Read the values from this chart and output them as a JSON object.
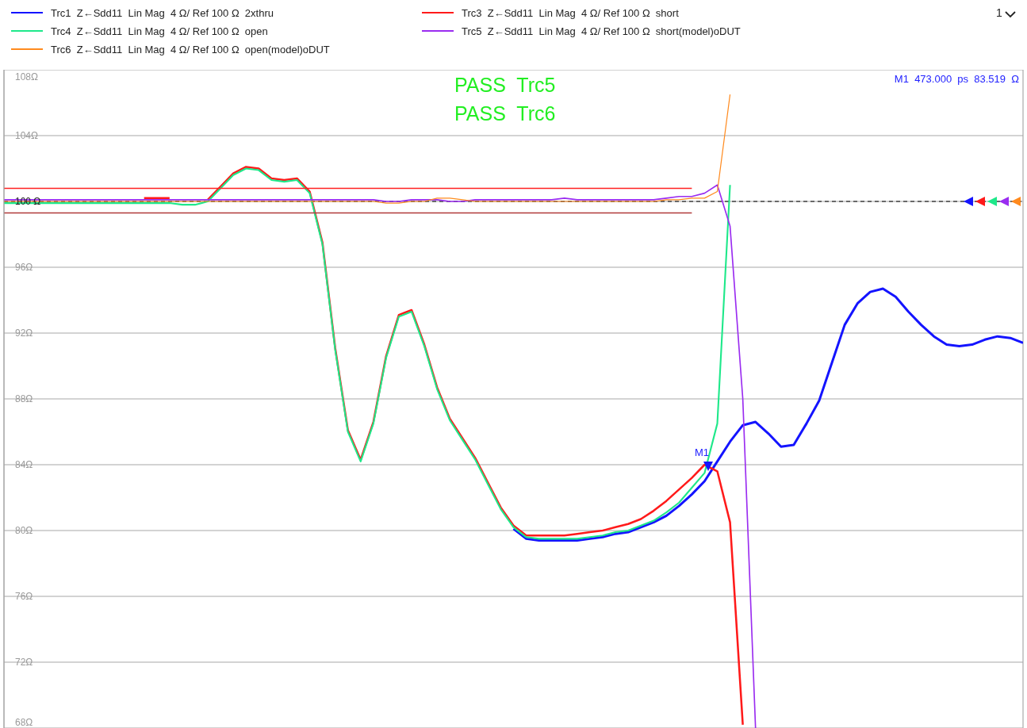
{
  "chart_data": {
    "type": "line",
    "categories": [
      null,
      null,
      null,
      null,
      null,
      null,
      null,
      null,
      null,
      null,
      null,
      null,
      null,
      null,
      null,
      null,
      null,
      null,
      null,
      null,
      null,
      null,
      null,
      null,
      null,
      null,
      null,
      null,
      null,
      null,
      null,
      null,
      null,
      null,
      null,
      null,
      null,
      null,
      null,
      null,
      null,
      null,
      null,
      null,
      null,
      null,
      null,
      null,
      null,
      null,
      null,
      null,
      null,
      null,
      null,
      null,
      null,
      null,
      null,
      null,
      null,
      null,
      null,
      null,
      null,
      null,
      null,
      null,
      null,
      null,
      null,
      null,
      null,
      null,
      null,
      null,
      null,
      null,
      null,
      null,
      null
    ],
    "series": [
      {
        "name": "Trc1  Z←Sdd11  Lin Mag  4 Ω/ Ref 100 Ω  2xthru",
        "color": "#1414ff",
        "values": [
          null,
          null,
          null,
          null,
          null,
          null,
          null,
          null,
          null,
          null,
          null,
          null,
          null,
          null,
          null,
          null,
          null,
          null,
          null,
          null,
          null,
          null,
          null,
          null,
          null,
          null,
          null,
          null,
          null,
          null,
          null,
          null,
          null,
          null,
          null,
          null,
          null,
          null,
          null,
          null,
          80.1,
          79.5,
          79.4,
          79.4,
          79.4,
          79.4,
          79.5,
          79.6,
          79.8,
          79.9,
          80.2,
          80.5,
          80.9,
          81.5,
          82.2,
          83.0,
          84.2,
          85.4,
          86.4,
          86.6,
          85.9,
          85.1,
          85.2,
          86.5,
          87.9,
          90.2,
          92.5,
          93.8,
          94.5,
          94.7,
          94.2,
          93.3,
          92.5,
          91.8,
          91.3,
          91.2,
          91.3,
          91.6,
          91.8,
          91.7,
          91.4
        ]
      },
      {
        "name": "Trc3  Z←Sdd11  Lin Mag  4 Ω/ Ref 100 Ω  short",
        "color": "#ff1a1a",
        "values": [
          null,
          null,
          null,
          null,
          null,
          null,
          null,
          null,
          null,
          null,
          null,
          100.2,
          100.2,
          100.2,
          null,
          null,
          100.1,
          100.9,
          101.7,
          102.1,
          102.0,
          101.4,
          101.3,
          101.4,
          100.6,
          97.5,
          91.1,
          86.1,
          84.3,
          86.6,
          90.6,
          93.1,
          93.4,
          91.3,
          88.7,
          86.8,
          85.6,
          84.4,
          82.9,
          81.4,
          80.3,
          79.7,
          79.7,
          79.7,
          79.7,
          79.8,
          79.9,
          80.0,
          80.2,
          80.4,
          80.7,
          81.2,
          81.8,
          82.5,
          83.2,
          84.0,
          83.6,
          80.5,
          68.2,
          null,
          null,
          null,
          null,
          null,
          null,
          null,
          null,
          null,
          null,
          null,
          null,
          null,
          null,
          null,
          null,
          null,
          null,
          null,
          null,
          null,
          null
        ]
      },
      {
        "name": "Trc4  Z←Sdd11  Lin Mag  4 Ω/ Ref 100 Ω  open",
        "color": "#1ee88a",
        "values": [
          99.9,
          99.9,
          99.9,
          99.9,
          99.9,
          99.9,
          99.9,
          99.9,
          99.9,
          99.9,
          99.9,
          99.9,
          99.9,
          99.9,
          99.8,
          99.8,
          100,
          100.8,
          101.6,
          102.0,
          101.9,
          101.3,
          101.2,
          101.3,
          100.5,
          97.4,
          91.0,
          86.0,
          84.2,
          86.5,
          90.5,
          93.0,
          93.3,
          91.2,
          88.6,
          86.7,
          85.5,
          84.3,
          82.8,
          81.3,
          80.2,
          79.6,
          79.5,
          79.5,
          79.5,
          79.5,
          79.6,
          79.7,
          79.9,
          80.0,
          80.3,
          80.6,
          81.1,
          81.7,
          82.6,
          83.5,
          86.5,
          101.0,
          null,
          null,
          null,
          null,
          null,
          null,
          null,
          null,
          null,
          null,
          null,
          null,
          null,
          null,
          null,
          null,
          null,
          null,
          null,
          null,
          null,
          null,
          null
        ]
      },
      {
        "name": "Trc5  Z←Sdd11  Lin Mag  4 Ω/ Ref 100 Ω  short(model)oDUT",
        "color": "#9a2cf0",
        "values": [
          100.1,
          100.1,
          100.1,
          100.1,
          100.1,
          100.1,
          100.1,
          100.1,
          100.1,
          100.1,
          100.1,
          100.1,
          100.1,
          100.1,
          100.1,
          100.1,
          100.1,
          100.1,
          100.1,
          100.1,
          100.1,
          100.1,
          100.1,
          100.1,
          100.1,
          100.1,
          100.1,
          100.1,
          100.1,
          100.1,
          100.0,
          100.0,
          100.1,
          100.1,
          100.1,
          100.0,
          100.0,
          100.1,
          100.1,
          100.1,
          100.1,
          100.1,
          100.1,
          100.1,
          100.2,
          100.1,
          100.1,
          100.1,
          100.1,
          100.1,
          100.1,
          100.1,
          100.2,
          100.3,
          100.3,
          100.5,
          101.0,
          98.5,
          88.0,
          68.0,
          null,
          null,
          null,
          null,
          null,
          null,
          null,
          null,
          null,
          null,
          null,
          null,
          null,
          null,
          null,
          null,
          null,
          null,
          null,
          null,
          null
        ]
      },
      {
        "name": "Trc6  Z←Sdd11  Lin Mag  4 Ω/ Ref 100 Ω  open(model)oDUT",
        "color": "#ff8a1e",
        "values": [
          100,
          100,
          100,
          100,
          100,
          100,
          100,
          100,
          100,
          100,
          100,
          100,
          100,
          100,
          100,
          100,
          100,
          100,
          100,
          100,
          100,
          100,
          100,
          100,
          100,
          100,
          100,
          100,
          100,
          100,
          99.9,
          99.9,
          100,
          100,
          100.2,
          100.2,
          100.1,
          100,
          100,
          100,
          100,
          100,
          100,
          100,
          100,
          100,
          100,
          100,
          100,
          100,
          100,
          100,
          100.1,
          100.1,
          100.2,
          100.2,
          100.6,
          106.5,
          null,
          null,
          null,
          null,
          null,
          null,
          null,
          null,
          null,
          null,
          null,
          null,
          null,
          null,
          null,
          null,
          null,
          null,
          null,
          null,
          null,
          null,
          null
        ]
      },
      {
        "color": "#ff2020",
        "values": [
          100.8,
          100.8,
          100.8,
          100.8,
          100.8,
          100.8,
          100.8,
          100.8,
          100.8,
          100.8,
          100.8,
          100.8,
          100.8,
          100.8,
          100.8,
          100.8,
          100.8,
          100.8,
          100.8,
          100.8,
          100.8,
          100.8,
          100.8,
          100.8,
          100.8,
          100.8,
          100.8,
          100.8,
          100.8,
          100.8,
          100.8,
          100.8,
          100.8,
          100.8,
          100.8,
          100.8,
          100.8,
          100.8,
          100.8,
          100.8,
          100.8,
          100.8,
          100.8,
          100.8,
          100.8,
          100.8,
          100.8,
          100.8,
          100.8,
          100.8,
          100.8,
          100.8,
          100.8,
          100.8,
          100.8,
          null,
          null,
          null,
          null,
          null,
          null,
          null,
          null,
          null,
          null,
          null,
          null,
          null,
          null,
          null,
          null,
          null,
          null,
          null,
          null,
          null,
          null,
          null,
          null,
          null,
          null
        ]
      },
      {
        "color": "#b03a3a",
        "values": [
          99.3,
          99.3,
          99.3,
          99.3,
          99.3,
          99.3,
          99.3,
          99.3,
          99.3,
          99.3,
          99.3,
          99.3,
          99.3,
          99.3,
          99.3,
          99.3,
          99.3,
          99.3,
          99.3,
          99.3,
          99.3,
          99.3,
          99.3,
          99.3,
          99.3,
          99.3,
          99.3,
          99.3,
          99.3,
          99.3,
          99.3,
          99.3,
          99.3,
          99.3,
          99.3,
          99.3,
          99.3,
          99.3,
          99.3,
          99.3,
          99.3,
          99.3,
          99.3,
          99.3,
          99.3,
          99.3,
          99.3,
          99.3,
          99.3,
          99.3,
          99.3,
          99.3,
          99.3,
          99.3,
          99.3,
          null,
          null,
          null,
          null,
          null,
          null,
          null,
          null,
          null,
          null,
          null,
          null,
          null,
          null,
          null,
          null,
          null,
          null,
          null,
          null,
          null,
          null,
          null,
          null,
          null,
          null
        ]
      }
    ],
    "ylim": [
      68,
      108
    ],
    "yticks": [
      {
        "value": 68,
        "label": "68Ω"
      },
      {
        "value": 72,
        "label": "72Ω"
      },
      {
        "value": 76,
        "label": "76Ω"
      },
      {
        "value": 80,
        "label": "80Ω"
      },
      {
        "value": 84,
        "label": "84Ω"
      },
      {
        "value": 88,
        "label": "88Ω"
      },
      {
        "value": 92,
        "label": "92Ω"
      },
      {
        "value": 96,
        "label": "96Ω"
      },
      {
        "value": 100,
        "label": "100 Ω"
      },
      {
        "value": 104,
        "label": "104Ω"
      },
      {
        "value": 108,
        "label": "108Ω"
      }
    ],
    "grid": true,
    "legend": "top",
    "marker": "none",
    "line_style": "solid",
    "ref_lines": [
      {
        "axis": "y",
        "value": 100,
        "color": "#000000",
        "line_style": "dashed"
      }
    ],
    "annotations": [
      "PASS  Trc5",
      "PASS  Trc6",
      "M1  473.000  ps  83.519  Ω",
      "M1",
      "1"
    ]
  }
}
